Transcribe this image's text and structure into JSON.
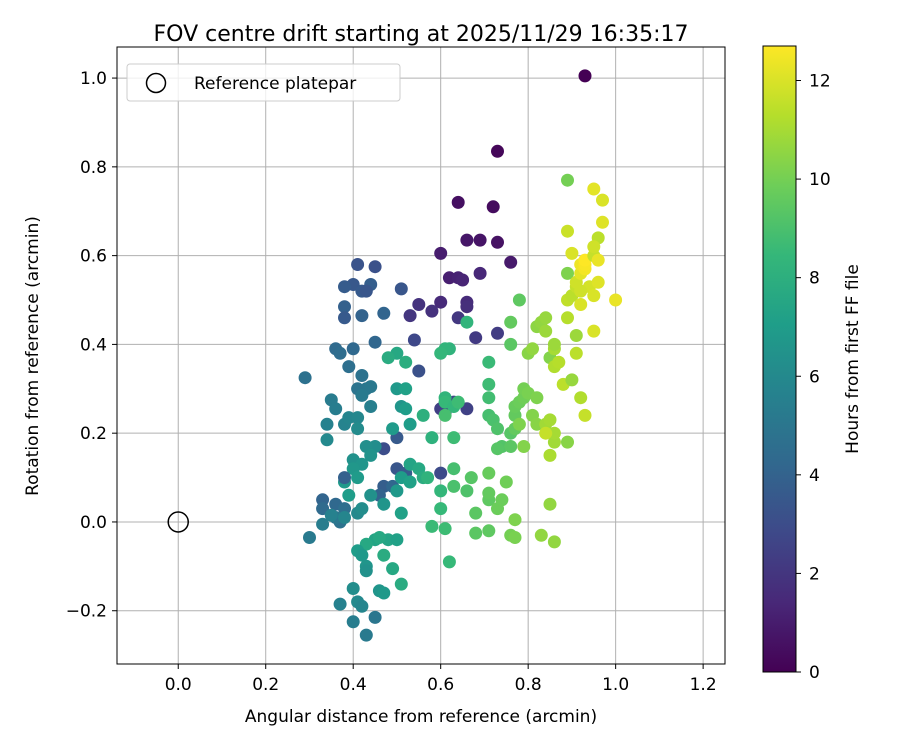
{
  "chart_data": {
    "type": "scatter",
    "title": "FOV centre drift starting at 2025/11/29 16:35:17",
    "xlabel": "Angular distance from reference (arcmin)",
    "ylabel": "Rotation from reference (arcmin)",
    "xlim": [
      -0.14,
      1.25
    ],
    "ylim": [
      -0.32,
      1.07
    ],
    "x_ticks": [
      0.0,
      0.2,
      0.4,
      0.6,
      0.8,
      1.0,
      1.2
    ],
    "x_tick_labels": [
      "0.0",
      "0.2",
      "0.4",
      "0.6",
      "0.8",
      "1.0",
      "1.2"
    ],
    "y_ticks": [
      -0.2,
      0.0,
      0.2,
      0.4,
      0.6,
      0.8,
      1.0
    ],
    "y_tick_labels": [
      "−0.2",
      "0.0",
      "0.2",
      "0.4",
      "0.6",
      "0.8",
      "1.0"
    ],
    "grid": true,
    "legend": {
      "position": "top-left",
      "entries": [
        {
          "label": "Reference platepar",
          "marker": "open-circle"
        }
      ]
    },
    "reference_point": {
      "x": 0.0,
      "y": 0.0
    },
    "colorbar": {
      "label": "Hours from first FF file",
      "range": [
        0,
        12.7
      ],
      "ticks": [
        0,
        2,
        4,
        6,
        8,
        10,
        12
      ],
      "tick_labels": [
        "0",
        "2",
        "4",
        "6",
        "8",
        "10",
        "12"
      ],
      "colormap": [
        "#440154",
        "#482878",
        "#3e4989",
        "#31688e",
        "#26828e",
        "#1f9e89",
        "#35b779",
        "#6ece58",
        "#b5de2b",
        "#fde725"
      ]
    },
    "points": [
      [
        0.93,
        1.005,
        0.0
      ],
      [
        0.73,
        0.835,
        0.2
      ],
      [
        0.72,
        0.71,
        0.4
      ],
      [
        0.64,
        0.72,
        0.5
      ],
      [
        0.73,
        0.63,
        0.6
      ],
      [
        0.69,
        0.635,
        0.7
      ],
      [
        0.66,
        0.635,
        0.8
      ],
      [
        0.76,
        0.585,
        0.9
      ],
      [
        0.6,
        0.605,
        1.0
      ],
      [
        0.62,
        0.55,
        1.1
      ],
      [
        0.64,
        0.55,
        1.2
      ],
      [
        0.65,
        0.545,
        1.3
      ],
      [
        0.69,
        0.56,
        1.4
      ],
      [
        0.6,
        0.495,
        1.5
      ],
      [
        0.66,
        0.495,
        1.6
      ],
      [
        0.66,
        0.485,
        1.7
      ],
      [
        0.58,
        0.475,
        1.8
      ],
      [
        0.55,
        0.49,
        1.9
      ],
      [
        0.53,
        0.465,
        2.0
      ],
      [
        0.64,
        0.46,
        2.1
      ],
      [
        0.68,
        0.415,
        2.2
      ],
      [
        0.73,
        0.425,
        2.3
      ],
      [
        0.6,
        0.255,
        2.4
      ],
      [
        0.66,
        0.255,
        2.5
      ],
      [
        0.63,
        0.27,
        2.6
      ],
      [
        0.61,
        0.245,
        2.7
      ],
      [
        0.54,
        0.41,
        2.8
      ],
      [
        0.6,
        0.11,
        2.9
      ],
      [
        0.47,
        0.165,
        3.0
      ],
      [
        0.45,
        0.575,
        3.2
      ],
      [
        0.41,
        0.58,
        3.3
      ],
      [
        0.51,
        0.525,
        3.4
      ],
      [
        0.4,
        0.535,
        3.5
      ],
      [
        0.42,
        0.52,
        3.6
      ],
      [
        0.38,
        0.53,
        3.7
      ],
      [
        0.44,
        0.535,
        3.8
      ],
      [
        0.43,
        0.52,
        3.4
      ],
      [
        0.38,
        0.485,
        3.9
      ],
      [
        0.42,
        0.465,
        4.0
      ],
      [
        0.47,
        0.47,
        4.1
      ],
      [
        0.38,
        0.46,
        3.6
      ],
      [
        0.45,
        0.405,
        4.2
      ],
      [
        0.4,
        0.39,
        4.3
      ],
      [
        0.36,
        0.39,
        4.4
      ],
      [
        0.37,
        0.38,
        4.5
      ],
      [
        0.39,
        0.35,
        4.6
      ],
      [
        0.29,
        0.325,
        4.7
      ],
      [
        0.42,
        0.33,
        4.8
      ],
      [
        0.41,
        0.3,
        4.9
      ],
      [
        0.43,
        0.3,
        5.0
      ],
      [
        0.44,
        0.305,
        5.1
      ],
      [
        0.42,
        0.285,
        5.2
      ],
      [
        0.35,
        0.275,
        5.3
      ],
      [
        0.36,
        0.255,
        5.4
      ],
      [
        0.44,
        0.26,
        5.5
      ],
      [
        0.34,
        0.22,
        5.6
      ],
      [
        0.38,
        0.22,
        5.7
      ],
      [
        0.39,
        0.235,
        5.8
      ],
      [
        0.41,
        0.235,
        5.9
      ],
      [
        0.34,
        0.185,
        6.0
      ],
      [
        0.41,
        0.21,
        6.1
      ],
      [
        0.45,
        0.17,
        6.2
      ],
      [
        0.43,
        0.17,
        6.3
      ],
      [
        0.4,
        0.14,
        6.4
      ],
      [
        0.44,
        0.15,
        6.5
      ],
      [
        0.42,
        0.13,
        6.6
      ],
      [
        0.4,
        0.12,
        6.7
      ],
      [
        0.38,
        0.09,
        6.8
      ],
      [
        0.41,
        0.1,
        6.9
      ],
      [
        0.39,
        0.06,
        7.0
      ],
      [
        0.5,
        0.19,
        3.6
      ],
      [
        0.55,
        0.34,
        3.2
      ],
      [
        0.5,
        0.12,
        3.4
      ],
      [
        0.52,
        0.11,
        3.7
      ],
      [
        0.47,
        0.08,
        3.8
      ],
      [
        0.46,
        0.06,
        4.0
      ],
      [
        0.49,
        0.08,
        4.2
      ],
      [
        0.38,
        0.1,
        3.9
      ],
      [
        0.33,
        0.05,
        4.1
      ],
      [
        0.33,
        0.03,
        4.4
      ],
      [
        0.36,
        0.04,
        4.3
      ],
      [
        0.38,
        0.03,
        4.6
      ],
      [
        0.37,
        0.0,
        4.8
      ],
      [
        0.36,
        0.01,
        5.0
      ],
      [
        0.3,
        -0.035,
        5.2
      ],
      [
        0.33,
        -0.005,
        5.4
      ],
      [
        0.35,
        0.015,
        5.6
      ],
      [
        0.38,
        0.01,
        5.8
      ],
      [
        0.41,
        0.02,
        6.0
      ],
      [
        0.42,
        0.03,
        6.2
      ],
      [
        0.44,
        0.06,
        6.4
      ],
      [
        0.47,
        0.04,
        6.6
      ],
      [
        0.5,
        0.07,
        6.8
      ],
      [
        0.51,
        0.1,
        7.0
      ],
      [
        0.53,
        0.09,
        7.2
      ],
      [
        0.53,
        0.13,
        7.4
      ],
      [
        0.55,
        0.12,
        7.6
      ],
      [
        0.56,
        0.1,
        7.8
      ],
      [
        0.51,
        0.02,
        7.2
      ],
      [
        0.45,
        -0.04,
        7.4
      ],
      [
        0.43,
        -0.05,
        7.6
      ],
      [
        0.41,
        -0.065,
        7.0
      ],
      [
        0.42,
        -0.075,
        6.8
      ],
      [
        0.43,
        -0.1,
        6.6
      ],
      [
        0.43,
        -0.11,
        6.4
      ],
      [
        0.4,
        -0.15,
        6.2
      ],
      [
        0.41,
        -0.18,
        6.0
      ],
      [
        0.42,
        -0.19,
        5.8
      ],
      [
        0.37,
        -0.185,
        5.6
      ],
      [
        0.4,
        -0.225,
        5.4
      ],
      [
        0.46,
        -0.155,
        6.6
      ],
      [
        0.47,
        -0.16,
        6.8
      ],
      [
        0.43,
        -0.255,
        5.2
      ],
      [
        0.45,
        -0.215,
        5.0
      ],
      [
        0.51,
        -0.14,
        7.8
      ],
      [
        0.49,
        -0.105,
        7.6
      ],
      [
        0.47,
        -0.075,
        7.8
      ],
      [
        0.48,
        -0.04,
        7.4
      ],
      [
        0.46,
        -0.035,
        7.6
      ],
      [
        0.5,
        -0.04,
        7.2
      ],
      [
        0.5,
        0.38,
        7.6
      ],
      [
        0.48,
        0.37,
        7.8
      ],
      [
        0.52,
        0.36,
        7.9
      ],
      [
        0.5,
        0.3,
        6.8
      ],
      [
        0.52,
        0.3,
        7.2
      ],
      [
        0.51,
        0.26,
        6.6
      ],
      [
        0.52,
        0.255,
        7.0
      ],
      [
        0.49,
        0.21,
        6.9
      ],
      [
        0.53,
        0.22,
        7.0
      ],
      [
        0.56,
        0.24,
        8.0
      ],
      [
        0.58,
        0.19,
        8.1
      ],
      [
        0.57,
        0.1,
        8.2
      ],
      [
        0.6,
        0.07,
        8.4
      ],
      [
        0.6,
        0.03,
        8.5
      ],
      [
        0.58,
        -0.01,
        8.6
      ],
      [
        0.61,
        -0.015,
        8.7
      ],
      [
        0.62,
        -0.09,
        8.5
      ],
      [
        0.62,
        0.39,
        8.2
      ],
      [
        0.61,
        0.39,
        8.3
      ],
      [
        0.6,
        0.38,
        8.4
      ],
      [
        0.66,
        0.45,
        8.3
      ],
      [
        0.61,
        0.28,
        8.3
      ],
      [
        0.61,
        0.27,
        8.5
      ],
      [
        0.63,
        0.26,
        8.4
      ],
      [
        0.64,
        0.27,
        8.7
      ],
      [
        0.61,
        0.24,
        8.9
      ],
      [
        0.63,
        0.19,
        8.7
      ],
      [
        0.63,
        0.12,
        8.9
      ],
      [
        0.63,
        0.08,
        9.0
      ],
      [
        0.66,
        0.07,
        9.1
      ],
      [
        0.67,
        0.1,
        9.3
      ],
      [
        0.68,
        0.02,
        9.4
      ],
      [
        0.68,
        -0.025,
        9.4
      ],
      [
        0.71,
        -0.02,
        9.5
      ],
      [
        0.71,
        0.05,
        9.5
      ],
      [
        0.71,
        0.065,
        9.6
      ],
      [
        0.71,
        0.11,
        9.7
      ],
      [
        0.73,
        0.03,
        9.8
      ],
      [
        0.74,
        0.05,
        9.8
      ],
      [
        0.75,
        0.09,
        9.9
      ],
      [
        0.76,
        -0.03,
        10.0
      ],
      [
        0.77,
        -0.035,
        10.1
      ],
      [
        0.77,
        0.005,
        10.2
      ],
      [
        0.71,
        0.36,
        8.6
      ],
      [
        0.71,
        0.31,
        8.7
      ],
      [
        0.71,
        0.28,
        8.8
      ],
      [
        0.71,
        0.24,
        8.9
      ],
      [
        0.72,
        0.23,
        9.0
      ],
      [
        0.73,
        0.21,
        9.1
      ],
      [
        0.74,
        0.17,
        9.2
      ],
      [
        0.73,
        0.165,
        9.3
      ],
      [
        0.76,
        0.17,
        9.4
      ],
      [
        0.76,
        0.2,
        9.3
      ],
      [
        0.76,
        0.4,
        9.4
      ],
      [
        0.76,
        0.45,
        9.6
      ],
      [
        0.78,
        0.5,
        9.5
      ],
      [
        0.77,
        0.21,
        9.6
      ],
      [
        0.77,
        0.24,
        9.6
      ],
      [
        0.77,
        0.26,
        9.7
      ],
      [
        0.78,
        0.27,
        9.8
      ],
      [
        0.79,
        0.28,
        9.9
      ],
      [
        0.79,
        0.3,
        10.0
      ],
      [
        0.8,
        0.29,
        10.1
      ],
      [
        0.78,
        0.22,
        10.2
      ],
      [
        0.79,
        0.17,
        10.3
      ],
      [
        0.81,
        0.24,
        10.3
      ],
      [
        0.82,
        0.28,
        10.2
      ],
      [
        0.82,
        0.22,
        10.4
      ],
      [
        0.8,
        0.38,
        10.4
      ],
      [
        0.81,
        0.39,
        10.6
      ],
      [
        0.82,
        0.44,
        10.5
      ],
      [
        0.83,
        0.45,
        10.6
      ],
      [
        0.84,
        0.46,
        10.7
      ],
      [
        0.84,
        0.43,
        10.8
      ],
      [
        0.84,
        0.22,
        10.9
      ],
      [
        0.86,
        0.18,
        10.9
      ],
      [
        0.86,
        0.2,
        11.0
      ],
      [
        0.85,
        0.15,
        11.1
      ],
      [
        0.85,
        0.23,
        11.0
      ],
      [
        0.84,
        0.2,
        11.6
      ],
      [
        0.85,
        0.04,
        10.6
      ],
      [
        0.83,
        -0.03,
        10.6
      ],
      [
        0.86,
        -0.045,
        10.6
      ],
      [
        0.85,
        0.37,
        10.3
      ],
      [
        0.86,
        0.39,
        11.0
      ],
      [
        0.86,
        0.35,
        11.2
      ],
      [
        0.87,
        0.36,
        11.3
      ],
      [
        0.86,
        0.4,
        10.8
      ],
      [
        0.88,
        0.31,
        11.4
      ],
      [
        0.89,
        0.18,
        10.4
      ],
      [
        0.89,
        0.77,
        10.0
      ],
      [
        0.89,
        0.56,
        10.2
      ],
      [
        0.9,
        0.32,
        10.7
      ],
      [
        0.91,
        0.38,
        11.4
      ],
      [
        0.92,
        0.28,
        11.2
      ],
      [
        0.93,
        0.24,
        11.6
      ],
      [
        0.91,
        0.42,
        10.8
      ],
      [
        0.89,
        0.46,
        11.3
      ],
      [
        0.89,
        0.5,
        11.5
      ],
      [
        0.9,
        0.51,
        11.4
      ],
      [
        0.91,
        0.53,
        11.6
      ],
      [
        0.91,
        0.54,
        11.8
      ],
      [
        0.92,
        0.49,
        12.0
      ],
      [
        0.92,
        0.56,
        12.2
      ],
      [
        0.92,
        0.58,
        12.4
      ],
      [
        0.93,
        0.57,
        12.5
      ],
      [
        0.93,
        0.58,
        12.6
      ],
      [
        0.93,
        0.59,
        12.7
      ],
      [
        0.94,
        0.53,
        11.9
      ],
      [
        0.95,
        0.51,
        12.0
      ],
      [
        0.95,
        0.6,
        11.6
      ],
      [
        0.96,
        0.64,
        11.4
      ],
      [
        0.96,
        0.54,
        12.1
      ],
      [
        0.96,
        0.59,
        12.3
      ],
      [
        0.97,
        0.725,
        12.0
      ],
      [
        0.97,
        0.675,
        12.1
      ],
      [
        0.95,
        0.75,
        12.2
      ],
      [
        0.95,
        0.43,
        12.0
      ],
      [
        0.95,
        0.62,
        11.8
      ],
      [
        1.0,
        0.5,
        12.3
      ],
      [
        0.89,
        0.655,
        11.7
      ],
      [
        0.9,
        0.605,
        12.0
      ],
      [
        0.92,
        0.52,
        11.8
      ]
    ]
  }
}
